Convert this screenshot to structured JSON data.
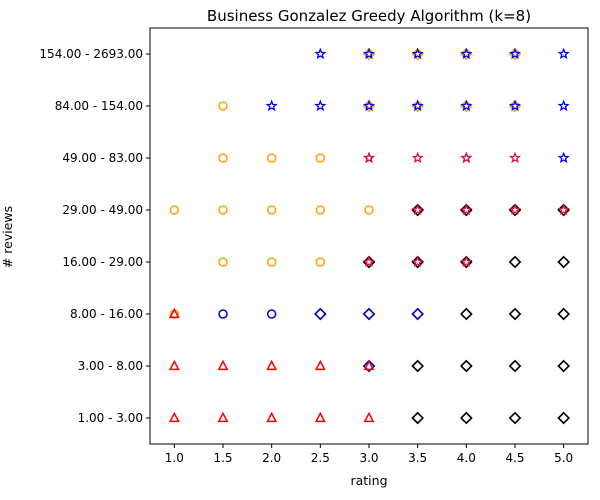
{
  "chart_data": {
    "type": "scatter",
    "title": "Business Gonzalez Greedy Algorithm (k=8)",
    "xlabel": "rating",
    "ylabel": "# reviews",
    "x_ticks": [
      "1.0",
      "1.5",
      "2.0",
      "2.5",
      "3.0",
      "3.5",
      "4.0",
      "4.5",
      "5.0"
    ],
    "x_values": [
      1.0,
      1.5,
      2.0,
      2.5,
      3.0,
      3.5,
      4.0,
      4.5,
      5.0
    ],
    "xlim": [
      0.75,
      5.25
    ],
    "y_categories": [
      "1.00 - 3.00",
      "3.00 - 8.00",
      "8.00 - 16.00",
      "16.00 - 29.00",
      "29.00 - 49.00",
      "49.00 - 83.00",
      "84.00 - 154.00",
      "154.00 - 2693.00"
    ],
    "grid": false,
    "legend": "none",
    "marker_styles": {
      "orange-circle": {
        "shape": "circle",
        "color": "#FFA500"
      },
      "blue-circle": {
        "shape": "circle",
        "color": "#0000CC"
      },
      "red-triangle": {
        "shape": "triangle",
        "color": "#FF0000"
      },
      "blue-star": {
        "shape": "star",
        "color": "#0000FF"
      },
      "blue-diamond": {
        "shape": "diamond",
        "color": "#0000CC"
      },
      "black-diamond": {
        "shape": "diamond",
        "color": "#000000"
      },
      "crimson-star": {
        "shape": "star",
        "color": "#DC143C"
      }
    },
    "points": [
      {
        "x": 1.0,
        "y": "1.00 - 3.00",
        "markers": [
          "red-triangle"
        ]
      },
      {
        "x": 1.5,
        "y": "1.00 - 3.00",
        "markers": [
          "red-triangle"
        ]
      },
      {
        "x": 2.0,
        "y": "1.00 - 3.00",
        "markers": [
          "red-triangle"
        ]
      },
      {
        "x": 2.5,
        "y": "1.00 - 3.00",
        "markers": [
          "red-triangle"
        ]
      },
      {
        "x": 3.0,
        "y": "1.00 - 3.00",
        "markers": [
          "red-triangle"
        ]
      },
      {
        "x": 3.5,
        "y": "1.00 - 3.00",
        "markers": [
          "black-diamond"
        ]
      },
      {
        "x": 4.0,
        "y": "1.00 - 3.00",
        "markers": [
          "black-diamond"
        ]
      },
      {
        "x": 4.5,
        "y": "1.00 - 3.00",
        "markers": [
          "black-diamond"
        ]
      },
      {
        "x": 5.0,
        "y": "1.00 - 3.00",
        "markers": [
          "black-diamond"
        ]
      },
      {
        "x": 1.0,
        "y": "3.00 - 8.00",
        "markers": [
          "red-triangle"
        ]
      },
      {
        "x": 1.5,
        "y": "3.00 - 8.00",
        "markers": [
          "red-triangle"
        ]
      },
      {
        "x": 2.0,
        "y": "3.00 - 8.00",
        "markers": [
          "red-triangle"
        ]
      },
      {
        "x": 2.5,
        "y": "3.00 - 8.00",
        "markers": [
          "red-triangle"
        ]
      },
      {
        "x": 3.0,
        "y": "3.00 - 8.00",
        "markers": [
          "blue-diamond",
          "red-triangle"
        ]
      },
      {
        "x": 3.5,
        "y": "3.00 - 8.00",
        "markers": [
          "black-diamond"
        ]
      },
      {
        "x": 4.0,
        "y": "3.00 - 8.00",
        "markers": [
          "black-diamond"
        ]
      },
      {
        "x": 4.5,
        "y": "3.00 - 8.00",
        "markers": [
          "black-diamond"
        ]
      },
      {
        "x": 5.0,
        "y": "3.00 - 8.00",
        "markers": [
          "black-diamond"
        ]
      },
      {
        "x": 1.0,
        "y": "8.00 - 16.00",
        "markers": [
          "orange-circle",
          "red-triangle"
        ]
      },
      {
        "x": 1.5,
        "y": "8.00 - 16.00",
        "markers": [
          "blue-circle"
        ]
      },
      {
        "x": 2.0,
        "y": "8.00 - 16.00",
        "markers": [
          "blue-circle"
        ]
      },
      {
        "x": 2.5,
        "y": "8.00 - 16.00",
        "markers": [
          "blue-diamond"
        ]
      },
      {
        "x": 3.0,
        "y": "8.00 - 16.00",
        "markers": [
          "blue-diamond"
        ]
      },
      {
        "x": 3.5,
        "y": "8.00 - 16.00",
        "markers": [
          "blue-diamond"
        ]
      },
      {
        "x": 4.0,
        "y": "8.00 - 16.00",
        "markers": [
          "black-diamond"
        ]
      },
      {
        "x": 4.5,
        "y": "8.00 - 16.00",
        "markers": [
          "black-diamond"
        ]
      },
      {
        "x": 5.0,
        "y": "8.00 - 16.00",
        "markers": [
          "black-diamond"
        ]
      },
      {
        "x": 1.5,
        "y": "16.00 - 29.00",
        "markers": [
          "orange-circle"
        ]
      },
      {
        "x": 2.0,
        "y": "16.00 - 29.00",
        "markers": [
          "orange-circle"
        ]
      },
      {
        "x": 2.5,
        "y": "16.00 - 29.00",
        "markers": [
          "orange-circle"
        ]
      },
      {
        "x": 3.0,
        "y": "16.00 - 29.00",
        "markers": [
          "black-diamond",
          "crimson-star"
        ]
      },
      {
        "x": 3.5,
        "y": "16.00 - 29.00",
        "markers": [
          "black-diamond",
          "crimson-star"
        ]
      },
      {
        "x": 4.0,
        "y": "16.00 - 29.00",
        "markers": [
          "black-diamond",
          "crimson-star"
        ]
      },
      {
        "x": 4.5,
        "y": "16.00 - 29.00",
        "markers": [
          "black-diamond"
        ]
      },
      {
        "x": 5.0,
        "y": "16.00 - 29.00",
        "markers": [
          "black-diamond"
        ]
      },
      {
        "x": 1.0,
        "y": "29.00 - 49.00",
        "markers": [
          "orange-circle"
        ]
      },
      {
        "x": 1.5,
        "y": "29.00 - 49.00",
        "markers": [
          "orange-circle"
        ]
      },
      {
        "x": 2.0,
        "y": "29.00 - 49.00",
        "markers": [
          "orange-circle"
        ]
      },
      {
        "x": 2.5,
        "y": "29.00 - 49.00",
        "markers": [
          "orange-circle"
        ]
      },
      {
        "x": 3.0,
        "y": "29.00 - 49.00",
        "markers": [
          "orange-circle"
        ]
      },
      {
        "x": 3.5,
        "y": "29.00 - 49.00",
        "markers": [
          "black-diamond",
          "crimson-star"
        ]
      },
      {
        "x": 4.0,
        "y": "29.00 - 49.00",
        "markers": [
          "black-diamond",
          "crimson-star"
        ]
      },
      {
        "x": 4.5,
        "y": "29.00 - 49.00",
        "markers": [
          "black-diamond",
          "crimson-star"
        ]
      },
      {
        "x": 5.0,
        "y": "29.00 - 49.00",
        "markers": [
          "black-diamond",
          "crimson-star"
        ]
      },
      {
        "x": 1.5,
        "y": "49.00 - 83.00",
        "markers": [
          "orange-circle"
        ]
      },
      {
        "x": 2.0,
        "y": "49.00 - 83.00",
        "markers": [
          "orange-circle"
        ]
      },
      {
        "x": 2.5,
        "y": "49.00 - 83.00",
        "markers": [
          "orange-circle"
        ]
      },
      {
        "x": 3.0,
        "y": "49.00 - 83.00",
        "markers": [
          "blue-star",
          "crimson-star"
        ]
      },
      {
        "x": 3.5,
        "y": "49.00 - 83.00",
        "markers": [
          "crimson-star"
        ]
      },
      {
        "x": 4.0,
        "y": "49.00 - 83.00",
        "markers": [
          "blue-star",
          "crimson-star"
        ]
      },
      {
        "x": 4.5,
        "y": "49.00 - 83.00",
        "markers": [
          "crimson-star"
        ]
      },
      {
        "x": 5.0,
        "y": "49.00 - 83.00",
        "markers": [
          "blue-star"
        ]
      },
      {
        "x": 1.5,
        "y": "84.00 - 154.00",
        "markers": [
          "orange-circle"
        ]
      },
      {
        "x": 2.0,
        "y": "84.00 - 154.00",
        "markers": [
          "blue-star"
        ]
      },
      {
        "x": 2.5,
        "y": "84.00 - 154.00",
        "markers": [
          "blue-star"
        ]
      },
      {
        "x": 3.0,
        "y": "84.00 - 154.00",
        "markers": [
          "orange-diamond",
          "blue-star"
        ]
      },
      {
        "x": 3.5,
        "y": "84.00 - 154.00",
        "markers": [
          "orange-diamond",
          "blue-star"
        ]
      },
      {
        "x": 4.0,
        "y": "84.00 - 154.00",
        "markers": [
          "orange-diamond",
          "blue-star"
        ]
      },
      {
        "x": 4.5,
        "y": "84.00 - 154.00",
        "markers": [
          "orange-diamond",
          "blue-star"
        ]
      },
      {
        "x": 5.0,
        "y": "84.00 - 154.00",
        "markers": [
          "blue-star"
        ]
      },
      {
        "x": 2.5,
        "y": "154.00 - 2693.00",
        "markers": [
          "blue-star"
        ]
      },
      {
        "x": 3.0,
        "y": "154.00 - 2693.00",
        "markers": [
          "orange-diamond",
          "blue-star"
        ]
      },
      {
        "x": 3.5,
        "y": "154.00 - 2693.00",
        "markers": [
          "orange-diamond",
          "blue-star"
        ]
      },
      {
        "x": 4.0,
        "y": "154.00 - 2693.00",
        "markers": [
          "orange-diamond",
          "blue-star"
        ]
      },
      {
        "x": 4.5,
        "y": "154.00 - 2693.00",
        "markers": [
          "orange-diamond",
          "blue-star"
        ]
      },
      {
        "x": 5.0,
        "y": "154.00 - 2693.00",
        "markers": [
          "blue-star"
        ]
      }
    ],
    "extra_marker_styles": {
      "orange-diamond": {
        "shape": "diamond",
        "color": "#FFA500"
      }
    }
  }
}
